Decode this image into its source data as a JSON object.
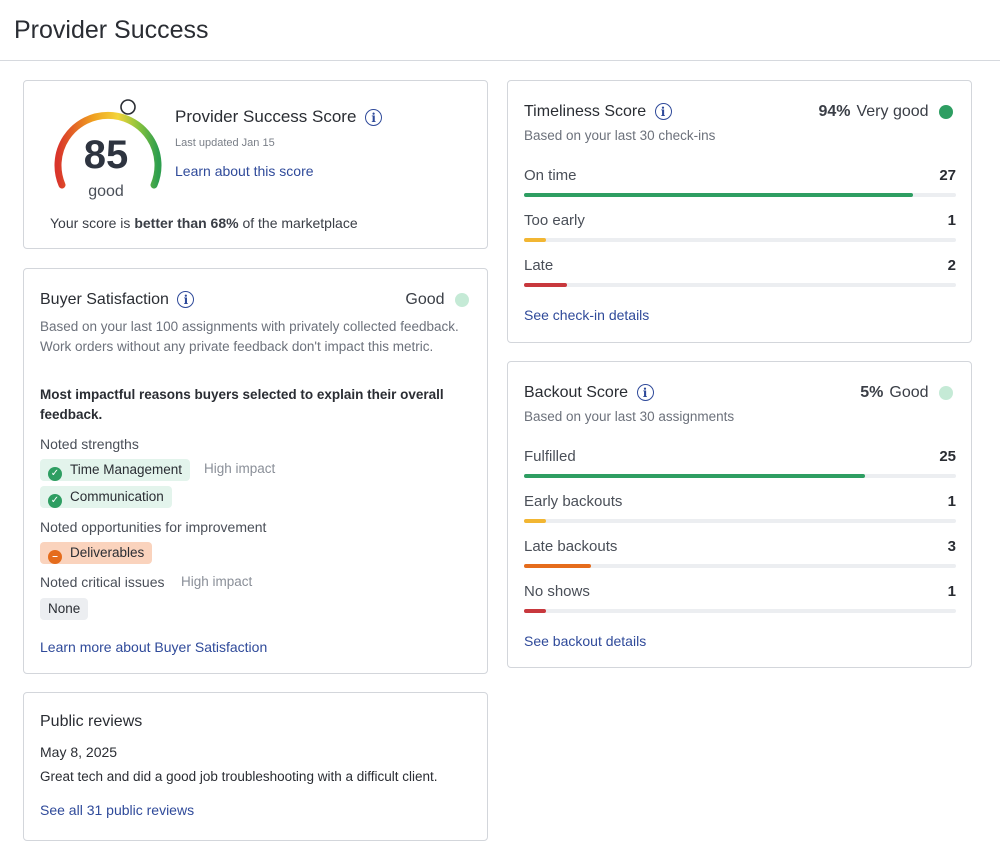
{
  "page": {
    "title": "Provider Success"
  },
  "score_card": {
    "score": "85",
    "rating": "good",
    "title": "Provider Success Score",
    "updated": "Last updated Jan 15",
    "learn_link": "Learn about this score",
    "compare_prefix": "Your score is ",
    "compare_bold": "better than 68%",
    "compare_suffix": " of the marketplace"
  },
  "buyer_satisfaction": {
    "title": "Buyer Satisfaction",
    "status": "Good",
    "status_color": "#c5ead6",
    "description": "Based on your last 100 assignments with privately collected feedback. Work orders without any private feedback don't impact this metric.",
    "reasons_heading": "Most impactful reasons buyers selected to explain their overall feedback.",
    "strengths_label": "Noted strengths",
    "strengths": [
      {
        "label": "Time Management",
        "impact": "High impact"
      },
      {
        "label": "Communication",
        "impact": ""
      }
    ],
    "opportunities_label": "Noted opportunities for improvement",
    "opportunities": [
      {
        "label": "Deliverables"
      }
    ],
    "critical_label": "Noted critical issues",
    "critical_impact": "High impact",
    "critical_value": "None",
    "learn_link": "Learn more about Buyer Satisfaction"
  },
  "public_reviews": {
    "title": "Public reviews",
    "date": "May 8, 2025",
    "text": "Great tech and did a good job troubleshooting with a difficult client.",
    "link": "See all 31 public reviews"
  },
  "timeliness": {
    "title": "Timeliness Score",
    "percent": "94%",
    "status": "Very good",
    "status_color": "#2e9e62",
    "subtitle": "Based on your last 30 check-ins",
    "rows": [
      {
        "label": "On time",
        "count": "27",
        "fraction": 0.9,
        "color": "#2e9e62"
      },
      {
        "label": "Too early",
        "count": "1",
        "fraction": 0.05,
        "color": "#f2b632"
      },
      {
        "label": "Late",
        "count": "2",
        "fraction": 0.1,
        "color": "#c8383d"
      }
    ],
    "link": "See check-in details"
  },
  "backout": {
    "title": "Backout Score",
    "percent": "5%",
    "status": "Good",
    "status_color": "#c5ead6",
    "subtitle": "Based on your last 30 assignments",
    "rows": [
      {
        "label": "Fulfilled",
        "count": "25",
        "fraction": 0.79,
        "color": "#2e9e62"
      },
      {
        "label": "Early backouts",
        "count": "1",
        "fraction": 0.05,
        "color": "#f2b632"
      },
      {
        "label": "Late backouts",
        "count": "3",
        "fraction": 0.155,
        "color": "#e56c1c"
      },
      {
        "label": "No shows",
        "count": "1",
        "fraction": 0.05,
        "color": "#c8383d"
      }
    ],
    "link": "See backout details"
  }
}
